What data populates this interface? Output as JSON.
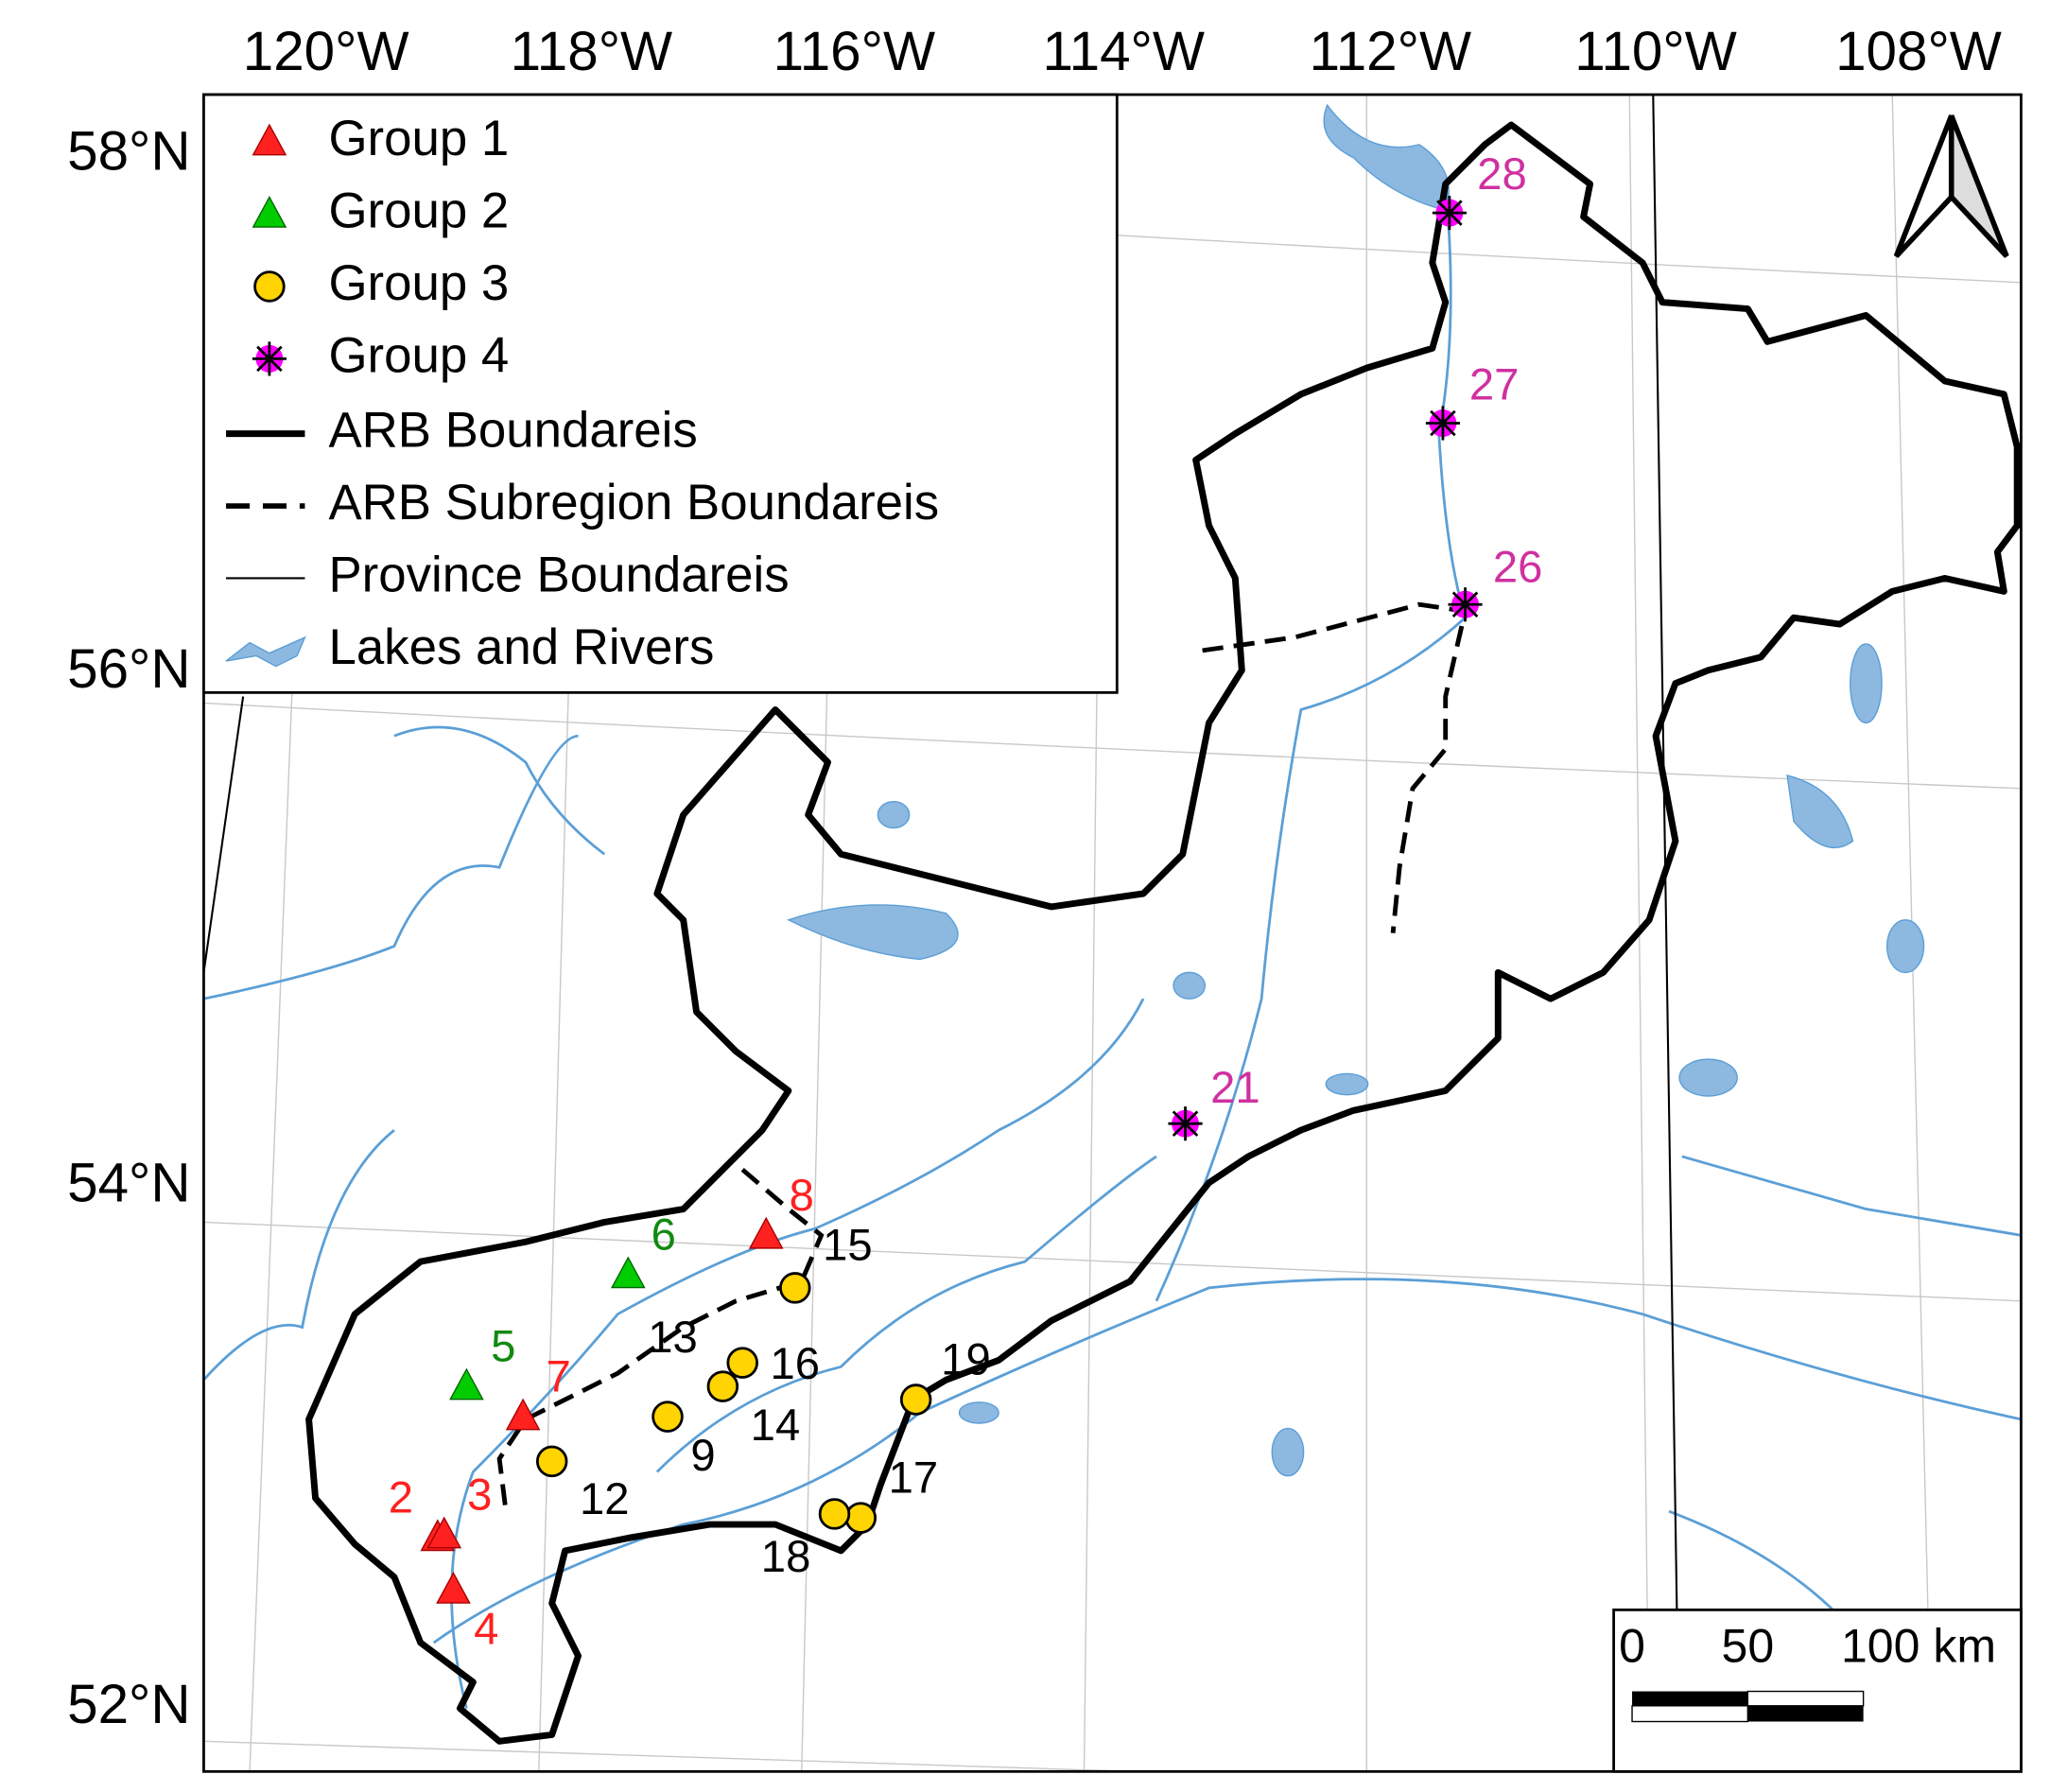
{
  "map": {
    "longitude_labels": [
      "120°W",
      "118°W",
      "116°W",
      "114°W",
      "112°W",
      "110°W",
      "108°W"
    ],
    "latitude_labels": [
      "58°N",
      "56°N",
      "54°N",
      "52°N"
    ],
    "legend": {
      "groups": [
        {
          "name": "Group 1",
          "marker": "triangle",
          "color": "#ff2020",
          "label_color": "#ff2020",
          "stations": [
            "2",
            "3",
            "4",
            "7",
            "8"
          ]
        },
        {
          "name": "Group 2",
          "marker": "triangle",
          "color": "#00cc00",
          "label_color": "#108a10",
          "stations": [
            "5",
            "6"
          ]
        },
        {
          "name": "Group 3",
          "marker": "circle",
          "color": "#ffd400",
          "label_color": "#000000",
          "stations": [
            "9",
            "12",
            "13",
            "14",
            "15",
            "16",
            "17",
            "18",
            "19"
          ]
        },
        {
          "name": "Group 4",
          "marker": "asterisk",
          "color": "#ff00ff",
          "label_color": "#d030a0",
          "stations": [
            "21",
            "26",
            "27",
            "28"
          ]
        }
      ],
      "features": [
        "ARB Boundareis",
        "ARB Subregion Boundareis",
        "Province Boundareis",
        "Lakes and Rivers"
      ]
    },
    "scale_bar": [
      "0",
      "50",
      "100 km"
    ]
  }
}
